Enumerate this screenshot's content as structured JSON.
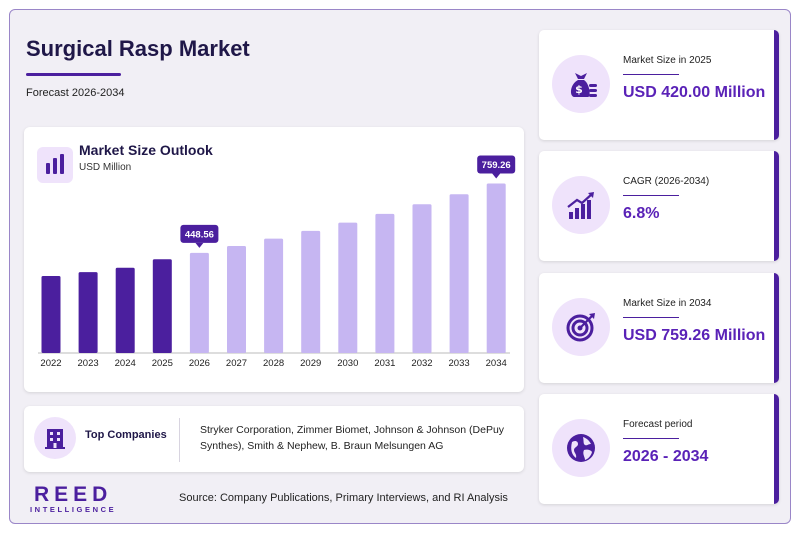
{
  "header": {
    "title": "Surgical Rasp Market",
    "subtitle": "Forecast 2026-2034"
  },
  "chart": {
    "title": "Market Size Outlook",
    "unit": "USD Million"
  },
  "chart_data": {
    "type": "bar",
    "title": "Market Size Outlook",
    "ylabel": "USD Million",
    "categories": [
      "2022",
      "2023",
      "2024",
      "2025",
      "2026",
      "2027",
      "2028",
      "2029",
      "2030",
      "2031",
      "2032",
      "2033",
      "2034"
    ],
    "values": [
      345,
      362,
      382,
      420,
      448.56,
      479,
      512,
      547,
      584,
      623,
      666,
      711,
      759.26
    ],
    "historical_count": 4,
    "callouts": [
      {
        "category": "2026",
        "label": "448.56"
      },
      {
        "category": "2034",
        "label": "759.26"
      }
    ],
    "colors": {
      "historical": "#4b1f9e",
      "forecast": "#c6b6f2",
      "callout": "#4b1f9e"
    },
    "grid": false,
    "legend": "none"
  },
  "companies": {
    "label": "Top Companies",
    "text": "Stryker Corporation, Zimmer Biomet, Johnson & Johnson (DePuy Synthes), Smith & Nephew, B. Braun Melsungen AG"
  },
  "stats": [
    {
      "label": "Market Size in 2025",
      "value": "USD 420.00 Million",
      "icon": "money-bag-icon"
    },
    {
      "label": "CAGR (2026-2034)",
      "value": "6.8%",
      "icon": "growth-chart-icon"
    },
    {
      "label": "Market Size in 2034",
      "value": "USD 759.26 Million",
      "icon": "target-icon"
    },
    {
      "label": "Forecast period",
      "value": "2026 - 2034",
      "icon": "globe-icon"
    }
  ],
  "footer": {
    "logo": "REED",
    "logo_sub": "INTELLIGENCE",
    "source": "Source: Company Publications, Primary Interviews, and RI Analysis"
  },
  "colors": {
    "accent": "#4b1f9e",
    "light_accent": "#efe3fb",
    "title": "#1f1748"
  }
}
